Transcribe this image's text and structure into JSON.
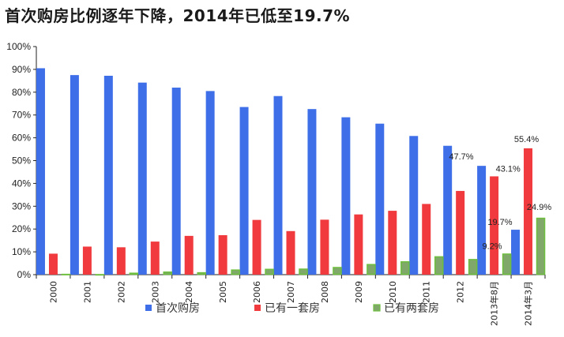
{
  "chart_data": {
    "type": "bar",
    "title": "首次购房比例逐年下降，2014年已低至19.7%",
    "categories": [
      "2000",
      "2001",
      "2002",
      "2003",
      "2004",
      "2005",
      "2006",
      "2007",
      "2008",
      "2009",
      "2010",
      "2011",
      "2012",
      "2013年8月",
      "2014年3月"
    ],
    "series": [
      {
        "name": "首次购房",
        "color": "#3f6fe8",
        "values": [
          90.5,
          87.5,
          87.2,
          84.2,
          82.0,
          80.5,
          73.5,
          78.3,
          72.6,
          69.0,
          66.2,
          60.8,
          56.5,
          47.7,
          19.7
        ]
      },
      {
        "name": "已有一套房",
        "color": "#f03a3d",
        "values": [
          9.2,
          12.3,
          12.0,
          14.5,
          17.0,
          17.3,
          24.0,
          19.1,
          24.1,
          26.4,
          28.0,
          31.0,
          36.7,
          43.1,
          55.4
        ]
      },
      {
        "name": "已有两套房",
        "color": "#7fa86a",
        "values": [
          0.3,
          0.2,
          0.8,
          1.3,
          1.0,
          2.2,
          2.5,
          2.6,
          3.3,
          4.6,
          5.8,
          8.0,
          6.8,
          9.2,
          24.9
        ]
      }
    ],
    "ylim": [
      0,
      100
    ],
    "yticks": [
      "0%",
      "10%",
      "20%",
      "30%",
      "40%",
      "50%",
      "60%",
      "70%",
      "80%",
      "90%",
      "100%"
    ],
    "data_labels": [
      {
        "series": 0,
        "index": 13,
        "text": "47.7%"
      },
      {
        "series": 1,
        "index": 13,
        "text": "43.1%"
      },
      {
        "series": 2,
        "index": 13,
        "text": "9.2%"
      },
      {
        "series": 0,
        "index": 14,
        "text": "19.7%"
      },
      {
        "series": 1,
        "index": 14,
        "text": "55.4%"
      },
      {
        "series": 2,
        "index": 14,
        "text": "24.9%"
      }
    ],
    "legend": "bottom",
    "grid": false
  }
}
